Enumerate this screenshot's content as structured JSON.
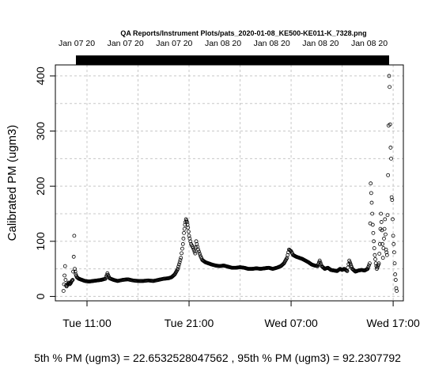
{
  "chart_data": {
    "type": "scatter",
    "title": "QA Reports/Instrument Plots/pats_2020-01-08_KE500-KE011-K_7328.png",
    "top_axis_labels": [
      "Jan 07 20",
      "Jan 07 20",
      "Jan 07 20",
      "Jan 08 20",
      "Jan 08 20",
      "Jan 08 20",
      "Jan 08 20"
    ],
    "ylabel": "Calibrated PM (ugm3)",
    "xlabel": "",
    "x_ticks": [
      "Tue 11:00",
      "Tue 21:00",
      "Wed 07:00",
      "Wed 17:00"
    ],
    "x_tick_hours": [
      11,
      21,
      31,
      41
    ],
    "xlim_hours": [
      7.9,
      42.0
    ],
    "y_ticks": [
      0,
      100,
      200,
      300,
      400
    ],
    "ylim": [
      -8,
      420
    ],
    "grid": true,
    "footer": "5th % PM (ugm3) =  22.6532528047562 , 95th % PM (ugm3)  =  92.2307792",
    "points": [
      [
        8.7,
        10
      ],
      [
        8.75,
        22
      ],
      [
        8.8,
        38
      ],
      [
        8.85,
        55
      ],
      [
        8.9,
        30
      ],
      [
        8.95,
        20
      ],
      [
        9.0,
        18
      ],
      [
        9.1,
        22
      ],
      [
        9.2,
        25
      ],
      [
        9.3,
        22
      ],
      [
        9.4,
        24
      ],
      [
        9.5,
        28
      ],
      [
        9.6,
        30
      ],
      [
        9.65,
        45
      ],
      [
        9.7,
        72
      ],
      [
        9.75,
        110
      ],
      [
        9.8,
        50
      ],
      [
        9.9,
        40
      ],
      [
        10.0,
        35
      ],
      [
        10.2,
        32
      ],
      [
        10.5,
        30
      ],
      [
        10.8,
        28
      ],
      [
        11.2,
        27
      ],
      [
        11.6,
        28
      ],
      [
        12.0,
        29
      ],
      [
        12.4,
        30
      ],
      [
        12.8,
        32
      ],
      [
        13.0,
        42
      ],
      [
        13.2,
        33
      ],
      [
        13.6,
        30
      ],
      [
        14.0,
        28
      ],
      [
        14.5,
        30
      ],
      [
        15.0,
        31
      ],
      [
        15.5,
        29
      ],
      [
        16.0,
        28
      ],
      [
        16.5,
        28
      ],
      [
        17.0,
        29
      ],
      [
        17.5,
        28
      ],
      [
        18.0,
        30
      ],
      [
        18.5,
        32
      ],
      [
        19.0,
        33
      ],
      [
        19.3,
        35
      ],
      [
        19.6,
        40
      ],
      [
        19.9,
        50
      ],
      [
        20.2,
        70
      ],
      [
        20.4,
        95
      ],
      [
        20.5,
        115
      ],
      [
        20.6,
        130
      ],
      [
        20.7,
        140
      ],
      [
        20.8,
        135
      ],
      [
        20.9,
        125
      ],
      [
        21.0,
        110
      ],
      [
        21.2,
        95
      ],
      [
        21.4,
        88
      ],
      [
        21.6,
        78
      ],
      [
        21.7,
        100
      ],
      [
        21.9,
        85
      ],
      [
        22.1,
        74
      ],
      [
        22.3,
        66
      ],
      [
        22.6,
        62
      ],
      [
        22.9,
        60
      ],
      [
        23.2,
        58
      ],
      [
        23.6,
        56
      ],
      [
        24.0,
        55
      ],
      [
        24.4,
        56
      ],
      [
        24.8,
        54
      ],
      [
        25.2,
        52
      ],
      [
        25.6,
        52
      ],
      [
        26.0,
        53
      ],
      [
        26.4,
        52
      ],
      [
        26.8,
        50
      ],
      [
        27.2,
        50
      ],
      [
        27.6,
        51
      ],
      [
        28.0,
        50
      ],
      [
        28.4,
        51
      ],
      [
        28.8,
        52
      ],
      [
        29.2,
        50
      ],
      [
        29.6,
        52
      ],
      [
        30.0,
        55
      ],
      [
        30.3,
        60
      ],
      [
        30.6,
        70
      ],
      [
        30.8,
        85
      ],
      [
        31.0,
        82
      ],
      [
        31.2,
        75
      ],
      [
        31.5,
        72
      ],
      [
        31.8,
        70
      ],
      [
        32.1,
        68
      ],
      [
        32.4,
        65
      ],
      [
        32.7,
        62
      ],
      [
        33.0,
        58
      ],
      [
        33.3,
        56
      ],
      [
        33.6,
        55
      ],
      [
        33.8,
        65
      ],
      [
        34.0,
        55
      ],
      [
        34.3,
        50
      ],
      [
        34.6,
        52
      ],
      [
        34.9,
        48
      ],
      [
        35.2,
        47
      ],
      [
        35.5,
        46
      ],
      [
        35.8,
        50
      ],
      [
        36.0,
        48
      ],
      [
        36.2,
        50
      ],
      [
        36.5,
        46
      ],
      [
        36.7,
        65
      ],
      [
        37.0,
        50
      ],
      [
        37.3,
        45
      ],
      [
        37.6,
        47
      ],
      [
        37.9,
        48
      ],
      [
        38.2,
        47
      ],
      [
        38.5,
        50
      ],
      [
        38.7,
        60
      ],
      [
        38.8,
        205
      ],
      [
        38.9,
        170
      ],
      [
        39.0,
        130
      ],
      [
        39.1,
        100
      ],
      [
        39.2,
        75
      ],
      [
        39.3,
        60
      ],
      [
        39.4,
        50
      ],
      [
        39.5,
        55
      ],
      [
        39.6,
        60
      ],
      [
        39.7,
        95
      ],
      [
        39.8,
        150
      ],
      [
        39.9,
        120
      ],
      [
        40.0,
        70
      ],
      [
        40.1,
        105
      ],
      [
        40.2,
        140
      ],
      [
        40.3,
        85
      ],
      [
        40.4,
        75
      ],
      [
        40.5,
        220
      ],
      [
        40.6,
        400
      ],
      [
        40.65,
        380
      ],
      [
        40.7,
        312
      ],
      [
        40.75,
        270
      ],
      [
        40.8,
        250
      ],
      [
        40.85,
        180
      ],
      [
        40.9,
        175
      ],
      [
        40.95,
        140
      ],
      [
        41.0,
        110
      ],
      [
        41.05,
        95
      ],
      [
        41.1,
        80
      ],
      [
        41.15,
        60
      ],
      [
        41.2,
        40
      ],
      [
        41.25,
        30
      ],
      [
        41.3,
        15
      ],
      [
        41.35,
        10
      ]
    ]
  }
}
